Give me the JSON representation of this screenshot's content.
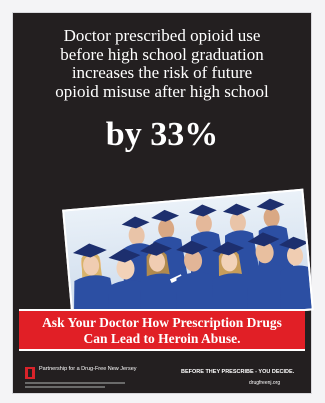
{
  "headline": {
    "lines": [
      "Doctor prescribed opioid use",
      "before high school graduation",
      "increases the risk of future",
      "opioid misuse after high school"
    ]
  },
  "stat": "by 33%",
  "banner": {
    "lines": [
      "Ask Your Doctor How Prescription Drugs",
      "Can Lead to Heroin Abuse."
    ]
  },
  "footer": {
    "org": "Partnership for a Drug-Free New Jersey",
    "tagline": "BEFORE THEY PRESCRIBE - YOU DECIDE.",
    "site": "drugfreenj.org"
  },
  "colors": {
    "background": "#231f20",
    "banner": "#e11f26",
    "gown": "#2c4fa3"
  }
}
